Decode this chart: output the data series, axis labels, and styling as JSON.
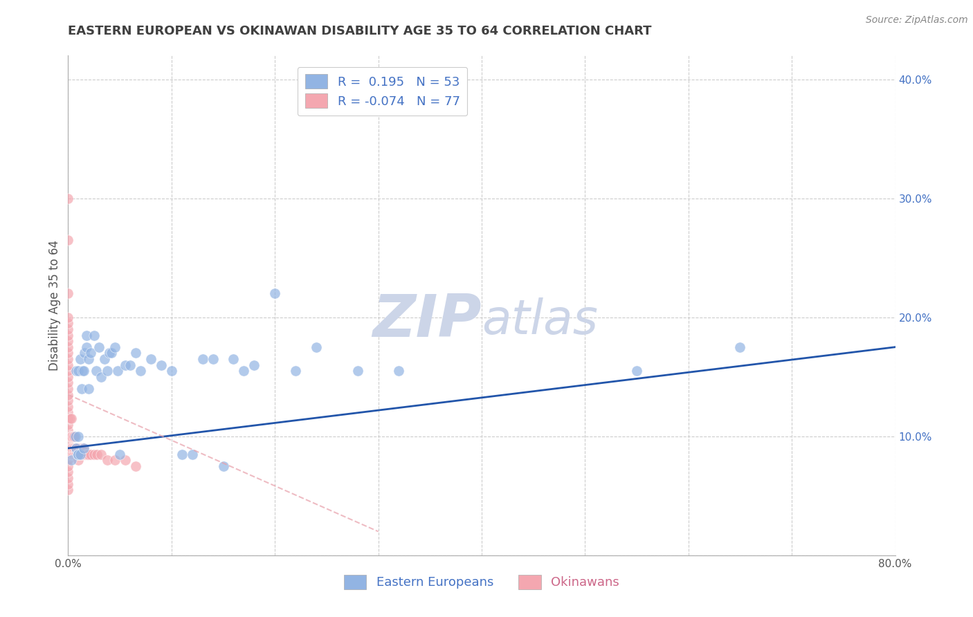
{
  "title": "EASTERN EUROPEAN VS OKINAWAN DISABILITY AGE 35 TO 64 CORRELATION CHART",
  "source": "Source: ZipAtlas.com",
  "ylabel": "Disability Age 35 to 64",
  "xlim": [
    0.0,
    0.8
  ],
  "ylim": [
    0.0,
    0.42
  ],
  "xticks": [
    0.0,
    0.1,
    0.2,
    0.3,
    0.4,
    0.5,
    0.6,
    0.7,
    0.8
  ],
  "yticks": [
    0.0,
    0.1,
    0.2,
    0.3,
    0.4
  ],
  "blue_R": 0.195,
  "blue_N": 53,
  "pink_R": -0.074,
  "pink_N": 77,
  "legend_labels": [
    "Eastern Europeans",
    "Okinawans"
  ],
  "blue_color": "#92b4e3",
  "pink_color": "#f4a7b0",
  "trendline_color": "#2255aa",
  "pink_trendline_color": "#e8a0aa",
  "background_color": "#ffffff",
  "grid_color": "#cccccc",
  "title_color": "#404040",
  "watermark_color": "#ccd5e8",
  "blue_points_x": [
    0.003,
    0.007,
    0.008,
    0.008,
    0.009,
    0.01,
    0.01,
    0.01,
    0.012,
    0.012,
    0.013,
    0.014,
    0.015,
    0.015,
    0.016,
    0.018,
    0.018,
    0.02,
    0.02,
    0.022,
    0.025,
    0.027,
    0.03,
    0.032,
    0.035,
    0.038,
    0.04,
    0.042,
    0.045,
    0.048,
    0.05,
    0.055,
    0.06,
    0.065,
    0.07,
    0.08,
    0.09,
    0.1,
    0.11,
    0.12,
    0.13,
    0.14,
    0.15,
    0.16,
    0.17,
    0.18,
    0.2,
    0.22,
    0.24,
    0.28,
    0.32,
    0.55,
    0.65
  ],
  "blue_points_y": [
    0.08,
    0.1,
    0.09,
    0.155,
    0.085,
    0.085,
    0.1,
    0.155,
    0.085,
    0.165,
    0.14,
    0.155,
    0.09,
    0.155,
    0.17,
    0.175,
    0.185,
    0.14,
    0.165,
    0.17,
    0.185,
    0.155,
    0.175,
    0.15,
    0.165,
    0.155,
    0.17,
    0.17,
    0.175,
    0.155,
    0.085,
    0.16,
    0.16,
    0.17,
    0.155,
    0.165,
    0.16,
    0.155,
    0.085,
    0.085,
    0.165,
    0.165,
    0.075,
    0.165,
    0.155,
    0.16,
    0.22,
    0.155,
    0.175,
    0.155,
    0.155,
    0.155,
    0.175
  ],
  "pink_points_x": [
    0.0,
    0.0,
    0.0,
    0.0,
    0.0,
    0.0,
    0.0,
    0.0,
    0.0,
    0.0,
    0.0,
    0.0,
    0.0,
    0.0,
    0.0,
    0.0,
    0.0,
    0.0,
    0.0,
    0.0,
    0.0,
    0.0,
    0.0,
    0.0,
    0.0,
    0.0,
    0.0,
    0.0,
    0.0,
    0.0,
    0.0,
    0.0,
    0.0,
    0.002,
    0.002,
    0.002,
    0.003,
    0.003,
    0.003,
    0.003,
    0.004,
    0.004,
    0.004,
    0.005,
    0.005,
    0.005,
    0.006,
    0.006,
    0.006,
    0.007,
    0.007,
    0.008,
    0.008,
    0.009,
    0.01,
    0.01,
    0.01,
    0.011,
    0.012,
    0.013,
    0.013,
    0.014,
    0.015,
    0.015,
    0.016,
    0.017,
    0.018,
    0.019,
    0.02,
    0.022,
    0.025,
    0.028,
    0.032,
    0.038,
    0.045,
    0.055,
    0.065
  ],
  "pink_points_y": [
    0.055,
    0.06,
    0.065,
    0.07,
    0.075,
    0.08,
    0.085,
    0.09,
    0.095,
    0.1,
    0.105,
    0.11,
    0.115,
    0.12,
    0.125,
    0.13,
    0.135,
    0.14,
    0.145,
    0.15,
    0.155,
    0.16,
    0.165,
    0.17,
    0.175,
    0.18,
    0.185,
    0.19,
    0.195,
    0.2,
    0.22,
    0.265,
    0.3,
    0.09,
    0.1,
    0.115,
    0.085,
    0.09,
    0.1,
    0.115,
    0.085,
    0.09,
    0.1,
    0.085,
    0.09,
    0.1,
    0.085,
    0.09,
    0.1,
    0.085,
    0.09,
    0.085,
    0.09,
    0.085,
    0.08,
    0.085,
    0.09,
    0.085,
    0.085,
    0.085,
    0.09,
    0.085,
    0.085,
    0.09,
    0.085,
    0.085,
    0.085,
    0.085,
    0.085,
    0.085,
    0.085,
    0.085,
    0.085,
    0.08,
    0.08,
    0.08,
    0.075
  ],
  "trendline_x0": 0.0,
  "trendline_y0": 0.09,
  "trendline_x1": 0.8,
  "trendline_y1": 0.175,
  "pink_trendline_x0": 0.0,
  "pink_trendline_y0": 0.135,
  "pink_trendline_x1": 0.3,
  "pink_trendline_y1": 0.02
}
